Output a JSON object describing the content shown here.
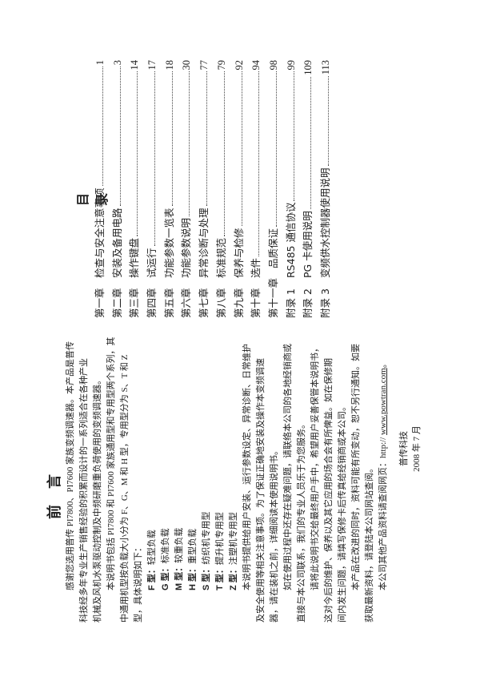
{
  "foreword": {
    "title": "前言",
    "paragraphs": [
      {
        "lines": [
          "感谢您选用普传 PI7800、PI7600 家族变频调速器。本产品是普传",
          "科技经多年专业生产销售经验的积累而设计的一系列适合在各种产业",
          "机械及风机水泵驱动控制及中频研磨重负荷使用的变频调速器。"
        ]
      },
      {
        "lines": [
          "本说明书包括 PI7800 和 PI7600 家族通用型和专用型两个系列，其",
          "中通用机型按负载大小分为 F、G、M 和 H 型，专用型分为 S、T 和 Z",
          "型，具体说明如下："
        ]
      }
    ],
    "types": [
      {
        "label": "F 型：",
        "desc": "轻型负载"
      },
      {
        "label": "G 型：",
        "desc": "标准负载"
      },
      {
        "label": "M 型：",
        "desc": "较重负载"
      },
      {
        "label": "H 型：",
        "desc": "重型负载"
      },
      {
        "label": "S 型：",
        "desc": "纺织机专用型"
      },
      {
        "label": "T 型：",
        "desc": "提升机专用型"
      },
      {
        "label": "Z 型：",
        "desc": "注塑机专用型"
      }
    ],
    "paragraphs2": [
      {
        "lines": [
          "本说明书提供给用户安装、运行参数设定、异常诊断、日常维护",
          "及安全使用等相关注意事项。为了保证正确地安装及操作本变频调速",
          "器，请在装机之前，详细阅读本使用说明书。"
        ]
      },
      {
        "lines": [
          "如在使用过程中还存在疑难问题，请联络本公司的各地经销商或",
          "直接与本公司联系，我们的专业人员乐于为您服务。"
        ]
      },
      {
        "lines": [
          "请将此说明书交给最终用户手中，希望用户妥善保管本说明书，",
          "这对今后的维护、保养以及其它应用的场合会有所俾益。如在保修期",
          "间内发生问题，请填写保修卡后传真给经销商或本公司。"
        ]
      },
      {
        "lines": [
          "本产品在改进的同时，资料可能有所变动，恕不另行通知。如要",
          "获取最新资料，请登陆本公司网站查阅。"
        ]
      }
    ],
    "web_prefix": "本公司其他产品资料请查阅网页：http:// ",
    "web_link": "www.powtran.com",
    "web_suffix": "。",
    "signature_company": "普传科技",
    "signature_date": "2008 年 7 月"
  },
  "toc": {
    "title": "目录",
    "entries": [
      {
        "label": "第一章",
        "text": "检查与安全注意事项",
        "page": "1"
      },
      {
        "label": "第二章",
        "text": "安装及备用电路",
        "page": "3"
      },
      {
        "label": "第三章",
        "text": "操作键盘",
        "page": "14"
      },
      {
        "label": "第四章",
        "text": "试运行",
        "page": "17"
      },
      {
        "label": "第五章",
        "text": "功能参数一览表",
        "page": "18"
      },
      {
        "label": "第六章",
        "text": "功能参数说明",
        "page": "30"
      },
      {
        "label": "第七章",
        "text": "异常诊断与处理",
        "page": "77"
      },
      {
        "label": "第八章",
        "text": "标准规范",
        "page": "79"
      },
      {
        "label": "第九章",
        "text": "保养与检修",
        "page": "92"
      },
      {
        "label": "第十章",
        "text": "选件",
        "page": "94"
      },
      {
        "label": "第十一章",
        "text": "品质保证",
        "page": "98"
      },
      {
        "label": "附录 1",
        "text": "RS485 通信协议",
        "page": "99"
      },
      {
        "label": "附录 2",
        "text": "PG 卡使用说明",
        "page": "109"
      },
      {
        "label": "附录 3",
        "text": "变频供水控制器使用说明",
        "page": "113"
      }
    ]
  }
}
